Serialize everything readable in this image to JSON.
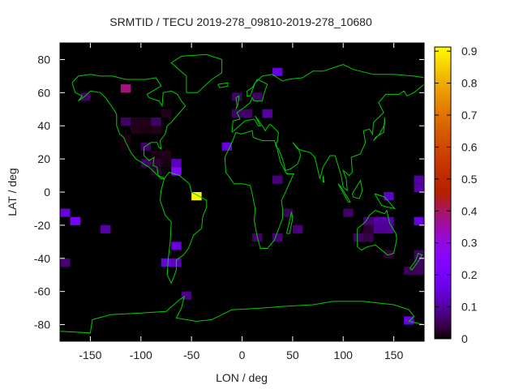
{
  "chart_data": {
    "type": "heatmap",
    "title": "SRMTID / TECU 2019-278_09810-2019-278_10680",
    "xlabel": "LON / deg",
    "ylabel": "LAT / deg",
    "xlim": [
      -180,
      180
    ],
    "ylim": [
      -90,
      90
    ],
    "xticks": [
      -150,
      -100,
      -50,
      0,
      50,
      100,
      150
    ],
    "yticks": [
      -80,
      -60,
      -40,
      -20,
      0,
      20,
      40,
      60,
      80
    ],
    "colorbar": {
      "range": [
        0,
        0.913
      ],
      "ticks": [
        0,
        0.1,
        0.2,
        0.3,
        0.4,
        0.5,
        0.6,
        0.7,
        0.8,
        0.9
      ],
      "tick_labels": [
        "0",
        "0.1",
        "0.2",
        "0.3",
        "0.4",
        "0.5",
        "0.6",
        "0.7",
        "0.8",
        "0.9"
      ],
      "colormap": "black-blue-purple-red-yellow"
    },
    "cell_size_deg": {
      "lon": 10,
      "lat": 5
    },
    "background": "#000000",
    "coastline_color": "#00cc00",
    "cells": [
      {
        "lon": -160,
        "lat": 55,
        "value": 0.06
      },
      {
        "lon": -120,
        "lat": 60,
        "value": 0.38
      },
      {
        "lon": -80,
        "lat": 45,
        "value": 0.015
      },
      {
        "lon": -120,
        "lat": 40,
        "value": 0.06
      },
      {
        "lon": -110,
        "lat": 40,
        "value": 0.015
      },
      {
        "lon": -100,
        "lat": 40,
        "value": 0.015
      },
      {
        "lon": -90,
        "lat": 40,
        "value": 0.06
      },
      {
        "lon": -110,
        "lat": 35,
        "value": 0.015
      },
      {
        "lon": -100,
        "lat": 35,
        "value": 0.01
      },
      {
        "lon": -90,
        "lat": 35,
        "value": 0.015
      },
      {
        "lon": -120,
        "lat": 30,
        "value": 0.01
      },
      {
        "lon": -120,
        "lat": 25,
        "value": 0.005
      },
      {
        "lon": -100,
        "lat": 25,
        "value": 0.06
      },
      {
        "lon": -90,
        "lat": 20,
        "value": 0.01
      },
      {
        "lon": -80,
        "lat": 20,
        "value": 0.015
      },
      {
        "lon": -100,
        "lat": 15,
        "value": 0.06
      },
      {
        "lon": -90,
        "lat": 15,
        "value": 0.03
      },
      {
        "lon": -80,
        "lat": 15,
        "value": 0.01
      },
      {
        "lon": -70,
        "lat": 15,
        "value": 0.12
      },
      {
        "lon": -90,
        "lat": 10,
        "value": 0.03
      },
      {
        "lon": -70,
        "lat": 10,
        "value": 0.25
      },
      {
        "lon": -50,
        "lat": -5,
        "value": 0.9
      },
      {
        "lon": -180,
        "lat": -15,
        "value": 0.15
      },
      {
        "lon": -170,
        "lat": -20,
        "value": 0.2
      },
      {
        "lon": -140,
        "lat": -25,
        "value": 0.1
      },
      {
        "lon": -180,
        "lat": -45,
        "value": 0.07
      },
      {
        "lon": -70,
        "lat": -35,
        "value": 0.15
      },
      {
        "lon": -80,
        "lat": -45,
        "value": 0.15
      },
      {
        "lon": -70,
        "lat": -45,
        "value": 0.12
      },
      {
        "lon": -60,
        "lat": -65,
        "value": 0.08
      },
      {
        "lon": -20,
        "lat": 25,
        "value": 0.15
      },
      {
        "lon": -10,
        "lat": 55,
        "value": 0.06
      },
      {
        "lon": 10,
        "lat": 55,
        "value": 0.06
      },
      {
        "lon": 30,
        "lat": 70,
        "value": 0.15
      },
      {
        "lon": -10,
        "lat": 45,
        "value": 0.06
      },
      {
        "lon": 0,
        "lat": 45,
        "value": 0.06
      },
      {
        "lon": 20,
        "lat": 45,
        "value": 0.1
      },
      {
        "lon": 30,
        "lat": 5,
        "value": 0.07
      },
      {
        "lon": 40,
        "lat": -15,
        "value": 0.05
      },
      {
        "lon": 50,
        "lat": -25,
        "value": 0.07
      },
      {
        "lon": 10,
        "lat": -30,
        "value": 0.06
      },
      {
        "lon": 30,
        "lat": -30,
        "value": 0.07
      },
      {
        "lon": 100,
        "lat": -15,
        "value": 0.06
      },
      {
        "lon": 140,
        "lat": -5,
        "value": 0.13
      },
      {
        "lon": 170,
        "lat": 5,
        "value": 0.1
      },
      {
        "lon": 170,
        "lat": 0,
        "value": 0.1
      },
      {
        "lon": 120,
        "lat": -20,
        "value": 0.07
      },
      {
        "lon": 130,
        "lat": -20,
        "value": 0.1
      },
      {
        "lon": 140,
        "lat": -20,
        "value": 0.1
      },
      {
        "lon": 120,
        "lat": -25,
        "value": 0.03
      },
      {
        "lon": 130,
        "lat": -25,
        "value": 0.09
      },
      {
        "lon": 140,
        "lat": -25,
        "value": 0.09
      },
      {
        "lon": 110,
        "lat": -30,
        "value": 0.06
      },
      {
        "lon": 120,
        "lat": -30,
        "value": 0.04
      },
      {
        "lon": 170,
        "lat": -20,
        "value": 0.15
      },
      {
        "lon": 140,
        "lat": -40,
        "value": 0.03
      },
      {
        "lon": 170,
        "lat": -40,
        "value": 0.06
      },
      {
        "lon": 170,
        "lat": -45,
        "value": 0.06
      },
      {
        "lon": 160,
        "lat": -50,
        "value": 0.05
      },
      {
        "lon": 170,
        "lat": -50,
        "value": 0.05
      },
      {
        "lon": 160,
        "lat": -80,
        "value": 0.15
      }
    ]
  }
}
